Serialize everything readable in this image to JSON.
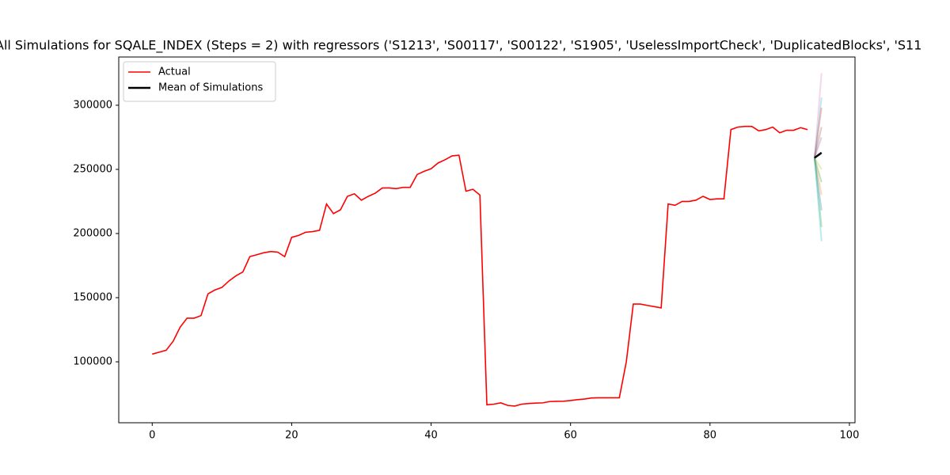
{
  "chart_data": {
    "type": "line",
    "title": "All Simulations for SQALE_INDEX (Steps = 2) with regressors ('S1213', 'S00117', 'S00122', 'S1905', 'UselessImportCheck', 'DuplicatedBlocks', 'S11",
    "xlim": [
      -4.8,
      100.8
    ],
    "xticks": [
      0,
      20,
      40,
      60,
      80,
      100
    ],
    "ylim": [
      52500,
      337600
    ],
    "yticks": [
      100000,
      150000,
      200000,
      250000,
      300000
    ],
    "grid": false,
    "legend": "upper left",
    "series": [
      {
        "name": "Actual",
        "color": "#ff0000",
        "x": [
          0,
          1,
          2,
          3,
          4,
          5,
          6,
          7,
          8,
          9,
          10,
          11,
          12,
          13,
          14,
          15,
          16,
          17,
          18,
          19,
          20,
          21,
          22,
          23,
          24,
          25,
          26,
          27,
          28,
          29,
          30,
          31,
          32,
          33,
          34,
          35,
          36,
          37,
          38,
          39,
          40,
          41,
          42,
          43,
          44,
          45,
          46,
          47,
          48,
          49,
          50,
          51,
          52,
          53,
          54,
          55,
          56,
          57,
          58,
          59,
          60,
          61,
          62,
          63,
          64,
          65,
          66,
          67,
          68,
          69,
          70,
          71,
          72,
          73,
          74,
          75,
          76,
          77,
          78,
          79,
          80,
          81,
          82,
          83,
          84,
          85,
          86,
          87,
          88,
          89,
          90,
          91,
          92,
          93,
          94
        ],
        "values": [
          106000,
          107500,
          109000,
          116000,
          127000,
          134000,
          134000,
          136000,
          153000,
          156000,
          158000,
          163000,
          167000,
          170000,
          182000,
          183500,
          185000,
          186000,
          185500,
          182000,
          197000,
          198500,
          201000,
          201500,
          202500,
          223000,
          215500,
          218500,
          229000,
          231000,
          226000,
          229000,
          231500,
          235500,
          235500,
          235000,
          236000,
          236000,
          246000,
          248500,
          250500,
          255000,
          257500,
          260500,
          261000,
          233000,
          234500,
          230000,
          66500,
          67000,
          68000,
          66000,
          65500,
          67000,
          67500,
          67800,
          68000,
          69000,
          69200,
          69300,
          69800,
          70500,
          71000,
          71800,
          72000,
          72000,
          72000,
          72000,
          100000,
          145000,
          145000,
          144000,
          143000,
          142000,
          223000,
          222000,
          225000,
          225000,
          226000,
          229000,
          226500,
          227000,
          227000,
          281000,
          283000,
          283500,
          283500,
          280000,
          281000,
          283000,
          278500,
          280500,
          280500,
          282500,
          281000
        ]
      },
      {
        "name": "Mean of Simulations",
        "color": "#000000",
        "x": [
          95,
          96
        ],
        "values": [
          259000,
          263000
        ]
      }
    ],
    "simulations": [
      {
        "color": "#e377c2",
        "x": [
          95,
          96
        ],
        "values": [
          259000,
          325000
        ]
      },
      {
        "color": "#17becf",
        "x": [
          95,
          96
        ],
        "values": [
          259000,
          306000
        ]
      },
      {
        "color": "#d62728",
        "x": [
          95,
          96
        ],
        "values": [
          259000,
          298000
        ]
      },
      {
        "color": "#8c564b",
        "x": [
          95,
          96
        ],
        "values": [
          259000,
          283000
        ]
      },
      {
        "color": "#9467bd",
        "x": [
          95,
          96
        ],
        "values": [
          259000,
          275000
        ]
      },
      {
        "color": "#7f7f7f",
        "x": [
          95,
          96
        ],
        "values": [
          259000,
          262000
        ]
      },
      {
        "color": "#bcbd22",
        "x": [
          95,
          96
        ],
        "values": [
          259000,
          250000
        ]
      },
      {
        "color": "#2ca02c",
        "x": [
          95,
          96
        ],
        "values": [
          259000,
          240000
        ]
      },
      {
        "color": "#ff7f0e",
        "x": [
          95,
          96
        ],
        "values": [
          259000,
          230000
        ]
      },
      {
        "color": "#1f77b4",
        "x": [
          95,
          96
        ],
        "values": [
          259000,
          218000
        ]
      },
      {
        "color": "#2ca02c",
        "x": [
          95,
          96
        ],
        "values": [
          259000,
          205000
        ]
      },
      {
        "color": "#17becf",
        "x": [
          95,
          96
        ],
        "values": [
          259000,
          194000
        ]
      }
    ]
  }
}
